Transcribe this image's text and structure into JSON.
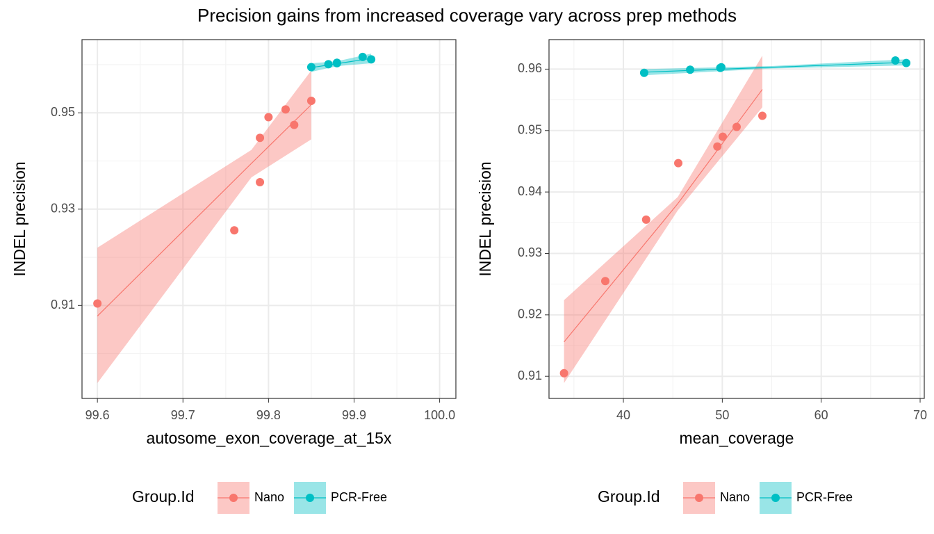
{
  "title": "Precision gains from increased coverage vary across prep methods",
  "chart_data": [
    {
      "type": "scatter",
      "x_label": "autosome_exon_coverage_at_15x",
      "y_label": "INDEL precision",
      "legend_title": "Group.Id",
      "legend_position": "bottom",
      "grid": true,
      "xlim": [
        99.582,
        100.019
      ],
      "ylim": [
        0.8907,
        0.9652
      ],
      "xticks": [
        99.6,
        99.7,
        99.8,
        99.9,
        {
          "value": 100,
          "label": "100.0"
        }
      ],
      "yticks": [
        0.91,
        0.93,
        0.95
      ],
      "x_minor_ticks": [
        99.65,
        99.75,
        99.85,
        99.95
      ],
      "y_minor_ticks": [
        0.9,
        0.92,
        0.94,
        0.96
      ],
      "series": [
        {
          "name": "Nano",
          "color": "#F8766D",
          "x": [
            99.6,
            99.76,
            99.79,
            99.79,
            99.8,
            99.82,
            99.83,
            99.85
          ],
          "values": [
            0.9104,
            0.9256,
            0.9356,
            0.9448,
            0.9491,
            0.9507,
            0.9475,
            0.9525
          ],
          "fit": {
            "x": [
              99.6,
              99.78,
              99.85
            ],
            "y": [
              0.9078,
              0.9395,
              0.9517
            ],
            "low": [
              0.8939,
              0.9366,
              0.9445
            ],
            "high": [
              0.922,
              0.9423,
              0.9588
            ]
          }
        },
        {
          "name": "PCR-Free",
          "color": "#00BFC4",
          "x": [
            99.85,
            99.87,
            99.88,
            99.88,
            99.91,
            99.92
          ],
          "values": [
            0.9595,
            0.9601,
            0.9603,
            0.9604,
            0.9616,
            0.9611
          ],
          "fit": {
            "x": [
              99.85,
              99.88,
              99.92
            ],
            "y": [
              0.9594,
              0.9602,
              0.9613
            ],
            "low": [
              0.9585,
              0.9597,
              0.9603
            ],
            "high": [
              0.9603,
              0.9607,
              0.9623
            ]
          }
        }
      ]
    },
    {
      "type": "scatter",
      "x_label": "mean_coverage",
      "y_label": "INDEL precision",
      "legend_title": "Group.Id",
      "legend_position": "bottom",
      "grid": true,
      "xlim": [
        32.48,
        70.42
      ],
      "ylim": [
        0.9064,
        0.9648
      ],
      "xticks": [
        40,
        50,
        60,
        70
      ],
      "yticks": [
        0.91,
        0.92,
        0.93,
        0.94,
        0.95,
        0.96
      ],
      "x_minor_ticks": [
        35,
        45,
        55,
        65
      ],
      "y_minor_ticks": [
        0.915,
        0.925,
        0.935,
        0.945,
        0.955
      ],
      "series": [
        {
          "name": "Nano",
          "color": "#F8766D",
          "x": [
            34.0,
            38.17,
            42.3,
            45.55,
            49.5,
            50.05,
            51.45,
            54.05
          ],
          "values": [
            0.9105,
            0.9255,
            0.9355,
            0.9447,
            0.9474,
            0.949,
            0.9506,
            0.9524
          ],
          "fit": {
            "x": [
              34.0,
              45.5,
              54.05
            ],
            "y": [
              0.9156,
              0.9381,
              0.9567
            ],
            "low": [
              0.9089,
              0.937,
              0.9538
            ],
            "high": [
              0.9224,
              0.9392,
              0.9622
            ]
          }
        },
        {
          "name": "PCR-Free",
          "color": "#00BFC4",
          "x": [
            42.1,
            46.75,
            49.8,
            49.9,
            67.5,
            68.6
          ],
          "values": [
            0.9594,
            0.9599,
            0.9602,
            0.9603,
            0.9614,
            0.961
          ],
          "fit": {
            "x": [
              42.1,
              55.0,
              68.6
            ],
            "y": [
              0.9595,
              0.9603,
              0.9611
            ],
            "low": [
              0.959,
              0.9601,
              0.9606
            ],
            "high": [
              0.96,
              0.9605,
              0.9616
            ]
          }
        }
      ]
    }
  ]
}
